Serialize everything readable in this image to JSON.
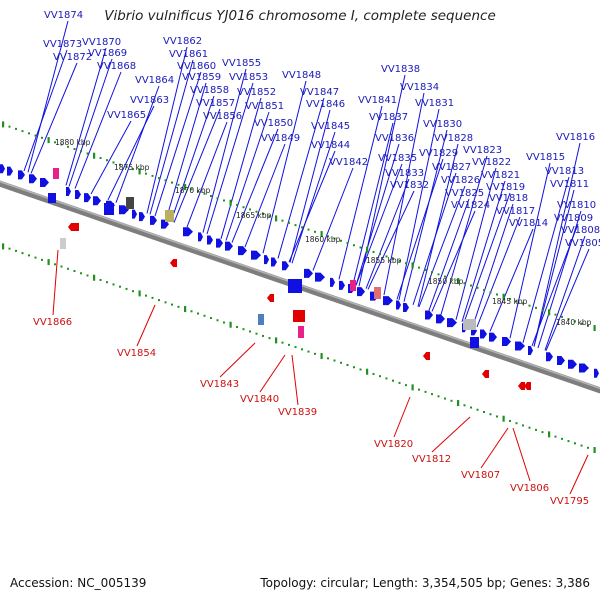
{
  "title": "Vibrio vulnificus YJ016 chromosome I, complete sequence",
  "footer": {
    "accession": "Accession: NC_005139",
    "summary": "Topology: circular; Length: 3,354,505 bp; Genes: 3,386"
  },
  "colors": {
    "forward": "#1010e0",
    "reverse": "#e00000",
    "backbone": "#888888",
    "ticks": "#209020"
  },
  "kbp_marks": [
    "1880 kbp",
    "1875 kbp",
    "1870 kbp",
    "1865 kbp",
    "1860 kbp",
    "1855 kbp",
    "1850 kbp",
    "1845 kbp",
    "1840 kbp"
  ],
  "forward_labels": [
    "VV1874",
    "VV1873",
    "VV1872",
    "VV1870",
    "VV1869",
    "VV1868",
    "VV1865",
    "VV1864",
    "VV1863",
    "VV1862",
    "VV1861",
    "VV1860",
    "VV1859",
    "VV1858",
    "VV1857",
    "VV1856",
    "VV1855",
    "VV1853",
    "VV1852",
    "VV1851",
    "VV1850",
    "VV1849",
    "VV1848",
    "VV1847",
    "VV1846",
    "VV1845",
    "VV1844",
    "VV1842",
    "VV1841",
    "VV1838",
    "VV1837",
    "VV1836",
    "VV1835",
    "VV1834",
    "VV1833",
    "VV1832",
    "VV1831",
    "VV1830",
    "VV1829",
    "VV1828",
    "VV1827",
    "VV1826",
    "VV1825",
    "VV1824",
    "VV1823",
    "VV1822",
    "VV1821",
    "VV1819",
    "VV1818",
    "VV1817",
    "VV1816",
    "VV1815",
    "VV1814",
    "VV1813",
    "VV1811",
    "VV1810",
    "VV1809",
    "VV1808",
    "VV1805"
  ],
  "reverse_labels": [
    "VV1866",
    "VV1854",
    "VV1843",
    "VV1840",
    "VV1839",
    "VV1820",
    "VV1812",
    "VV1807",
    "VV1806",
    "VV1795"
  ]
}
